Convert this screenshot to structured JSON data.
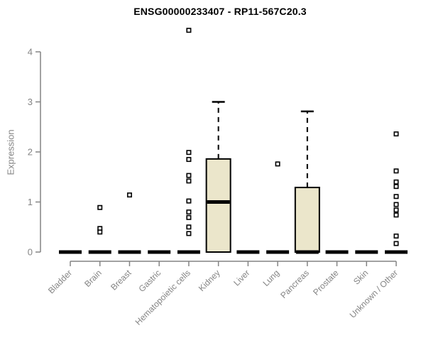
{
  "chart_data": {
    "type": "boxplot",
    "title": "ENSG00000233407 - RP11-567C20.3",
    "ylabel": "Expression",
    "xlabel": "",
    "ylim": [
      0,
      4
    ],
    "yticks": [
      0,
      1,
      2,
      3,
      4
    ],
    "grid": false,
    "legend": "none",
    "categories": [
      "Bladder",
      "Brain",
      "Breast",
      "Gastric",
      "Hematopoietic cells",
      "Kidney",
      "Liver",
      "Lung",
      "Pancreas",
      "Prostate",
      "Skin",
      "Unknown / Other"
    ],
    "series": [
      {
        "category": "Bladder",
        "q1": 0,
        "median": 0,
        "q3": 0,
        "whisker_low": 0,
        "whisker_high": 0,
        "outliers": []
      },
      {
        "category": "Brain",
        "q1": 0,
        "median": 0,
        "q3": 0,
        "whisker_low": 0,
        "whisker_high": 0,
        "outliers": [
          0.89,
          0.47,
          0.4
        ]
      },
      {
        "category": "Breast",
        "q1": 0,
        "median": 0,
        "q3": 0,
        "whisker_low": 0,
        "whisker_high": 0,
        "outliers": [
          1.14
        ]
      },
      {
        "category": "Gastric",
        "q1": 0,
        "median": 0,
        "q3": 0,
        "whisker_low": 0,
        "whisker_high": 0,
        "outliers": []
      },
      {
        "category": "Hematopoietic cells",
        "q1": 0,
        "median": 0,
        "q3": 0,
        "whisker_low": 0,
        "whisker_high": 0,
        "outliers": [
          4.43,
          1.99,
          1.85,
          1.53,
          1.42,
          1.02,
          0.8,
          0.69,
          0.5,
          0.37
        ]
      },
      {
        "category": "Kidney",
        "q1": 0,
        "median": 1.0,
        "q3": 1.86,
        "whisker_low": 0,
        "whisker_high": 3.0,
        "outliers": []
      },
      {
        "category": "Liver",
        "q1": 0,
        "median": 0,
        "q3": 0,
        "whisker_low": 0,
        "whisker_high": 0,
        "outliers": []
      },
      {
        "category": "Lung",
        "q1": 0,
        "median": 0,
        "q3": 0,
        "whisker_low": 0,
        "whisker_high": 0,
        "outliers": [
          1.76
        ]
      },
      {
        "category": "Pancreas",
        "q1": 0,
        "median": 0,
        "q3": 1.29,
        "whisker_low": 0,
        "whisker_high": 2.81,
        "outliers": []
      },
      {
        "category": "Prostate",
        "q1": 0,
        "median": 0,
        "q3": 0,
        "whisker_low": 0,
        "whisker_high": 0,
        "outliers": []
      },
      {
        "category": "Skin",
        "q1": 0,
        "median": 0,
        "q3": 0,
        "whisker_low": 0,
        "whisker_high": 0,
        "outliers": []
      },
      {
        "category": "Unknown / Other",
        "q1": 0,
        "median": 0,
        "q3": 0,
        "whisker_low": 0,
        "whisker_high": 0,
        "outliers": [
          2.36,
          1.62,
          1.4,
          1.31,
          1.11,
          0.95,
          0.84,
          0.74,
          0.32,
          0.17
        ]
      }
    ],
    "colors": {
      "box_fill": "#ebe6cb",
      "box_stroke": "#000000",
      "median": "#000000",
      "whisker": "#000000",
      "outlier_stroke": "#000000",
      "outlier_fill": "#ffffff",
      "axis": "#848484",
      "tick_text": "#848484",
      "title_text": "#000000",
      "background": "#ffffff"
    }
  }
}
